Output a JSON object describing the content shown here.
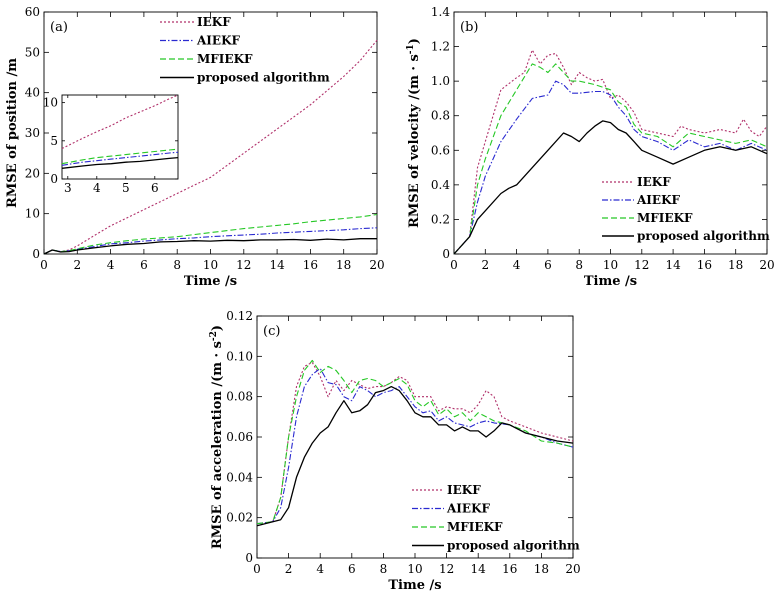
{
  "chart_data": [
    {
      "id": "a",
      "type": "line",
      "panel_label": "(a)",
      "xlabel": "Time /s",
      "ylabel": "RMSE of position /m",
      "xlim": [
        0,
        20
      ],
      "ylim": [
        0,
        60
      ],
      "xticks": [
        0,
        2,
        4,
        6,
        8,
        10,
        12,
        14,
        16,
        18,
        20
      ],
      "yticks": [
        0,
        10,
        20,
        30,
        40,
        50,
        60
      ],
      "legend_position": "top-center",
      "series": [
        {
          "name": "IEKF",
          "color": "#b0306a",
          "dash": "2,2",
          "x": [
            0,
            0.5,
            1,
            1.5,
            2,
            3,
            4,
            5,
            6,
            7,
            8,
            9,
            10,
            11,
            12,
            13,
            14,
            15,
            16,
            17,
            18,
            19,
            20
          ],
          "y": [
            0,
            1,
            0.6,
            1,
            2,
            4.5,
            7,
            9,
            11,
            13,
            15,
            17,
            19,
            22,
            25,
            28,
            31,
            34,
            37,
            40.5,
            44,
            48,
            53
          ]
        },
        {
          "name": "AIEKF",
          "color": "#2a2ad0",
          "dash": "6,2,1.5,2",
          "x": [
            0,
            0.5,
            1,
            1.5,
            2,
            3,
            4,
            5,
            6,
            7,
            8,
            9,
            10,
            11,
            12,
            13,
            14,
            15,
            16,
            17,
            18,
            19,
            20
          ],
          "y": [
            0,
            1,
            0.6,
            0.8,
            1.2,
            1.8,
            2.5,
            2.8,
            3.2,
            3.5,
            3.8,
            4,
            4.3,
            4.5,
            4.7,
            4.9,
            5.2,
            5.4,
            5.6,
            5.8,
            6,
            6.3,
            6.5
          ]
        },
        {
          "name": "MFIEKF",
          "color": "#26c826",
          "dash": "6,3",
          "x": [
            0,
            0.5,
            1,
            1.5,
            2,
            3,
            4,
            5,
            6,
            7,
            8,
            9,
            10,
            11,
            12,
            13,
            14,
            15,
            16,
            17,
            18,
            19,
            20
          ],
          "y": [
            0,
            1,
            0.6,
            0.8,
            1.3,
            2.2,
            2.8,
            3.3,
            3.7,
            4,
            4.3,
            4.8,
            5.3,
            5.8,
            6.3,
            6.7,
            7.1,
            7.5,
            8,
            8.4,
            8.8,
            9.2,
            9.8
          ]
        },
        {
          "name": "proposed algorithm",
          "color": "#000000",
          "dash": "",
          "x": [
            0,
            0.5,
            1,
            1.5,
            2,
            3,
            4,
            5,
            6,
            7,
            8,
            9,
            10,
            11,
            12,
            13,
            14,
            15,
            16,
            17,
            18,
            19,
            20
          ],
          "y": [
            0,
            1,
            0.5,
            0.6,
            1,
            1.5,
            2,
            2.4,
            2.6,
            3,
            3.1,
            3.3,
            3.2,
            3.4,
            3.3,
            3.5,
            3.5,
            3.6,
            3.4,
            3.7,
            3.5,
            3.8,
            3.8
          ]
        }
      ]
    },
    {
      "id": "a_inset",
      "type": "line",
      "xlim": [
        2.8,
        6.8
      ],
      "ylim": [
        0,
        11
      ],
      "xticks": [
        3,
        4,
        5,
        6
      ],
      "yticks": [
        0,
        5,
        10
      ],
      "series": [
        {
          "name": "IEKF",
          "color": "#b0306a",
          "dash": "2,2",
          "x": [
            2.8,
            3.5,
            4,
            4.5,
            5,
            5.5,
            6,
            6.5,
            6.8
          ],
          "y": [
            4,
            5.3,
            6.2,
            7,
            8,
            8.8,
            9.6,
            10.5,
            11
          ]
        },
        {
          "name": "AIEKF",
          "color": "#2a2ad0",
          "dash": "6,2,1.5,2",
          "x": [
            2.8,
            3.5,
            4,
            4.5,
            5,
            5.5,
            6,
            6.5,
            6.8
          ],
          "y": [
            1.8,
            2.2,
            2.4,
            2.6,
            2.8,
            3,
            3.2,
            3.4,
            3.5
          ]
        },
        {
          "name": "MFIEKF",
          "color": "#26c826",
          "dash": "6,3",
          "x": [
            2.8,
            3.5,
            4,
            4.5,
            5,
            5.5,
            6,
            6.5,
            6.8
          ],
          "y": [
            2,
            2.5,
            2.8,
            3,
            3.2,
            3.4,
            3.6,
            3.8,
            3.9
          ]
        },
        {
          "name": "proposed algorithm",
          "color": "#000000",
          "dash": "",
          "x": [
            2.8,
            3.5,
            4,
            4.5,
            5,
            5.5,
            6,
            6.5,
            6.8
          ],
          "y": [
            1.4,
            1.7,
            1.9,
            2,
            2.2,
            2.3,
            2.5,
            2.7,
            2.8
          ]
        }
      ]
    },
    {
      "id": "b",
      "type": "line",
      "panel_label": "(b)",
      "xlabel": "Time /s",
      "ylabel": "RMSE of velocity /(m · s",
      "ylabel_sup": "-1",
      "ylabel_tail": ")",
      "xlim": [
        0,
        20
      ],
      "ylim": [
        0,
        1.4
      ],
      "xticks": [
        0,
        2,
        4,
        6,
        8,
        10,
        12,
        14,
        16,
        18,
        20
      ],
      "yticks": [
        0,
        0.2,
        0.4,
        0.6,
        0.8,
        1.0,
        1.2,
        1.4
      ],
      "ytick_labels": [
        "0",
        "0.2",
        "0.4",
        "0.6",
        "0.8",
        "1.0",
        "1.2",
        "1.4"
      ],
      "legend_position": "lower-right",
      "series": [
        {
          "name": "IEKF",
          "color": "#b0306a",
          "dash": "2,2",
          "x": [
            0,
            1,
            1.5,
            2,
            3,
            4,
            4.5,
            5,
            5.5,
            6,
            6.5,
            7,
            7.5,
            8,
            8.5,
            9,
            9.5,
            10,
            10.5,
            11,
            11.5,
            12,
            13,
            14,
            14.5,
            15,
            16,
            17,
            18,
            18.5,
            19,
            19.5,
            20
          ],
          "y": [
            0,
            0.1,
            0.5,
            0.65,
            0.95,
            1.02,
            1.05,
            1.18,
            1.1,
            1.15,
            1.16,
            1.08,
            0.98,
            1.05,
            1.02,
            1.0,
            1.01,
            0.9,
            0.92,
            0.88,
            0.82,
            0.72,
            0.7,
            0.68,
            0.74,
            0.72,
            0.7,
            0.72,
            0.7,
            0.78,
            0.71,
            0.68,
            0.74
          ]
        },
        {
          "name": "AIEKF",
          "color": "#2a2ad0",
          "dash": "6,2,1.5,2",
          "x": [
            0,
            1,
            1.5,
            2,
            3,
            4,
            5,
            6,
            6.5,
            7,
            7.5,
            8,
            9,
            9.5,
            10,
            10.5,
            11,
            11.5,
            12,
            13,
            14,
            15,
            16,
            17,
            18,
            19,
            20
          ],
          "y": [
            0,
            0.1,
            0.3,
            0.45,
            0.65,
            0.78,
            0.9,
            0.92,
            1.0,
            0.98,
            0.93,
            0.93,
            0.94,
            0.94,
            0.92,
            0.85,
            0.8,
            0.72,
            0.68,
            0.65,
            0.6,
            0.66,
            0.62,
            0.64,
            0.6,
            0.64,
            0.6
          ]
        },
        {
          "name": "MFIEKF",
          "color": "#26c826",
          "dash": "6,3",
          "x": [
            0,
            1,
            1.5,
            2,
            3,
            4,
            5,
            5.5,
            6,
            6.5,
            7,
            7.5,
            8,
            9,
            10,
            10.5,
            11,
            11.5,
            12,
            13,
            14,
            15,
            16,
            17,
            18,
            19,
            20
          ],
          "y": [
            0,
            0.1,
            0.4,
            0.55,
            0.8,
            0.95,
            1.1,
            1.08,
            1.05,
            1.1,
            1.05,
            1.0,
            1.0,
            0.98,
            0.95,
            0.88,
            0.85,
            0.75,
            0.7,
            0.68,
            0.62,
            0.7,
            0.68,
            0.66,
            0.64,
            0.66,
            0.62
          ]
        },
        {
          "name": "proposed algorithm",
          "color": "#000000",
          "dash": "",
          "x": [
            0,
            1,
            1.5,
            2,
            3,
            3.5,
            4,
            5,
            6,
            7,
            7.5,
            8,
            8.5,
            9,
            9.5,
            10,
            10.5,
            11,
            11.5,
            12,
            13,
            14,
            15,
            16,
            17,
            18,
            19,
            20
          ],
          "y": [
            0,
            0.1,
            0.2,
            0.25,
            0.35,
            0.38,
            0.4,
            0.5,
            0.6,
            0.7,
            0.68,
            0.65,
            0.7,
            0.74,
            0.77,
            0.76,
            0.72,
            0.7,
            0.65,
            0.6,
            0.56,
            0.52,
            0.56,
            0.6,
            0.62,
            0.6,
            0.62,
            0.58
          ]
        }
      ]
    },
    {
      "id": "c",
      "type": "line",
      "panel_label": "(c)",
      "xlabel": "Time /s",
      "ylabel": "RMSE of acceleration /(m · s",
      "ylabel_sup": "-2",
      "ylabel_tail": ")",
      "xlim": [
        0,
        20
      ],
      "ylim": [
        0,
        0.12
      ],
      "xticks": [
        0,
        2,
        4,
        6,
        8,
        10,
        12,
        14,
        16,
        18,
        20
      ],
      "yticks": [
        0,
        0.02,
        0.04,
        0.06,
        0.08,
        0.1,
        0.12
      ],
      "ytick_labels": [
        "0",
        "0.02",
        "0.04",
        "0.06",
        "0.08",
        "0.10",
        "0.12"
      ],
      "legend_position": "lower-right",
      "series": [
        {
          "name": "IEKF",
          "color": "#b0306a",
          "dash": "2,2",
          "x": [
            0,
            1,
            1.5,
            2,
            2.5,
            3,
            3.5,
            4,
            4.5,
            5,
            5.5,
            6,
            6.5,
            7,
            7.5,
            8,
            8.5,
            9,
            9.5,
            10,
            10.5,
            11,
            11.5,
            12,
            12.5,
            13,
            13.5,
            14,
            14.5,
            15,
            15.5,
            16,
            17,
            18,
            19,
            20
          ],
          "y": [
            0.017,
            0.018,
            0.03,
            0.06,
            0.085,
            0.095,
            0.097,
            0.09,
            0.08,
            0.088,
            0.083,
            0.088,
            0.086,
            0.084,
            0.085,
            0.085,
            0.087,
            0.09,
            0.088,
            0.08,
            0.08,
            0.08,
            0.073,
            0.075,
            0.074,
            0.074,
            0.072,
            0.076,
            0.083,
            0.08,
            0.07,
            0.068,
            0.065,
            0.062,
            0.06,
            0.058
          ]
        },
        {
          "name": "AIEKF",
          "color": "#2a2ad0",
          "dash": "6,2,1.5,2",
          "x": [
            0,
            1,
            1.5,
            2,
            2.5,
            3,
            3.5,
            4,
            4.5,
            5,
            5.5,
            6,
            6.5,
            7,
            7.5,
            8,
            8.5,
            9,
            9.5,
            10,
            10.5,
            11,
            11.5,
            12,
            12.5,
            13,
            13.5,
            14,
            14.5,
            15,
            16,
            17,
            18,
            19,
            20
          ],
          "y": [
            0.017,
            0.018,
            0.025,
            0.045,
            0.07,
            0.085,
            0.091,
            0.094,
            0.087,
            0.086,
            0.08,
            0.078,
            0.085,
            0.083,
            0.08,
            0.082,
            0.083,
            0.085,
            0.08,
            0.075,
            0.072,
            0.073,
            0.068,
            0.07,
            0.067,
            0.066,
            0.065,
            0.067,
            0.068,
            0.067,
            0.066,
            0.062,
            0.06,
            0.057,
            0.055
          ]
        },
        {
          "name": "MFIEKF",
          "color": "#26c826",
          "dash": "6,3",
          "x": [
            0,
            1,
            1.5,
            2,
            2.5,
            3,
            3.5,
            4,
            4.5,
            5,
            5.5,
            6,
            6.5,
            7,
            7.5,
            8,
            8.5,
            9,
            9.5,
            10,
            10.5,
            11,
            11.5,
            12,
            12.5,
            13,
            13.5,
            14,
            14.5,
            15,
            16,
            17,
            18,
            19,
            20
          ],
          "y": [
            0.017,
            0.018,
            0.03,
            0.06,
            0.08,
            0.093,
            0.098,
            0.092,
            0.095,
            0.093,
            0.088,
            0.082,
            0.088,
            0.089,
            0.088,
            0.085,
            0.087,
            0.089,
            0.086,
            0.078,
            0.075,
            0.078,
            0.071,
            0.074,
            0.07,
            0.072,
            0.068,
            0.072,
            0.07,
            0.068,
            0.066,
            0.063,
            0.058,
            0.057,
            0.055
          ]
        },
        {
          "name": "proposed algorithm",
          "color": "#000000",
          "dash": "",
          "x": [
            0,
            1,
            1.5,
            2,
            2.5,
            3,
            3.5,
            4,
            4.5,
            5,
            5.5,
            6,
            6.5,
            7,
            7.5,
            8,
            8.5,
            9,
            9.5,
            10,
            10.5,
            11,
            11.5,
            12,
            12.5,
            13,
            13.5,
            14,
            14.5,
            15,
            15.5,
            16,
            17,
            18,
            19,
            20
          ],
          "y": [
            0.016,
            0.018,
            0.019,
            0.025,
            0.04,
            0.05,
            0.057,
            0.062,
            0.065,
            0.072,
            0.078,
            0.072,
            0.073,
            0.076,
            0.082,
            0.083,
            0.085,
            0.083,
            0.078,
            0.072,
            0.07,
            0.07,
            0.066,
            0.066,
            0.063,
            0.065,
            0.063,
            0.063,
            0.06,
            0.063,
            0.067,
            0.066,
            0.062,
            0.06,
            0.058,
            0.057
          ]
        }
      ]
    }
  ]
}
